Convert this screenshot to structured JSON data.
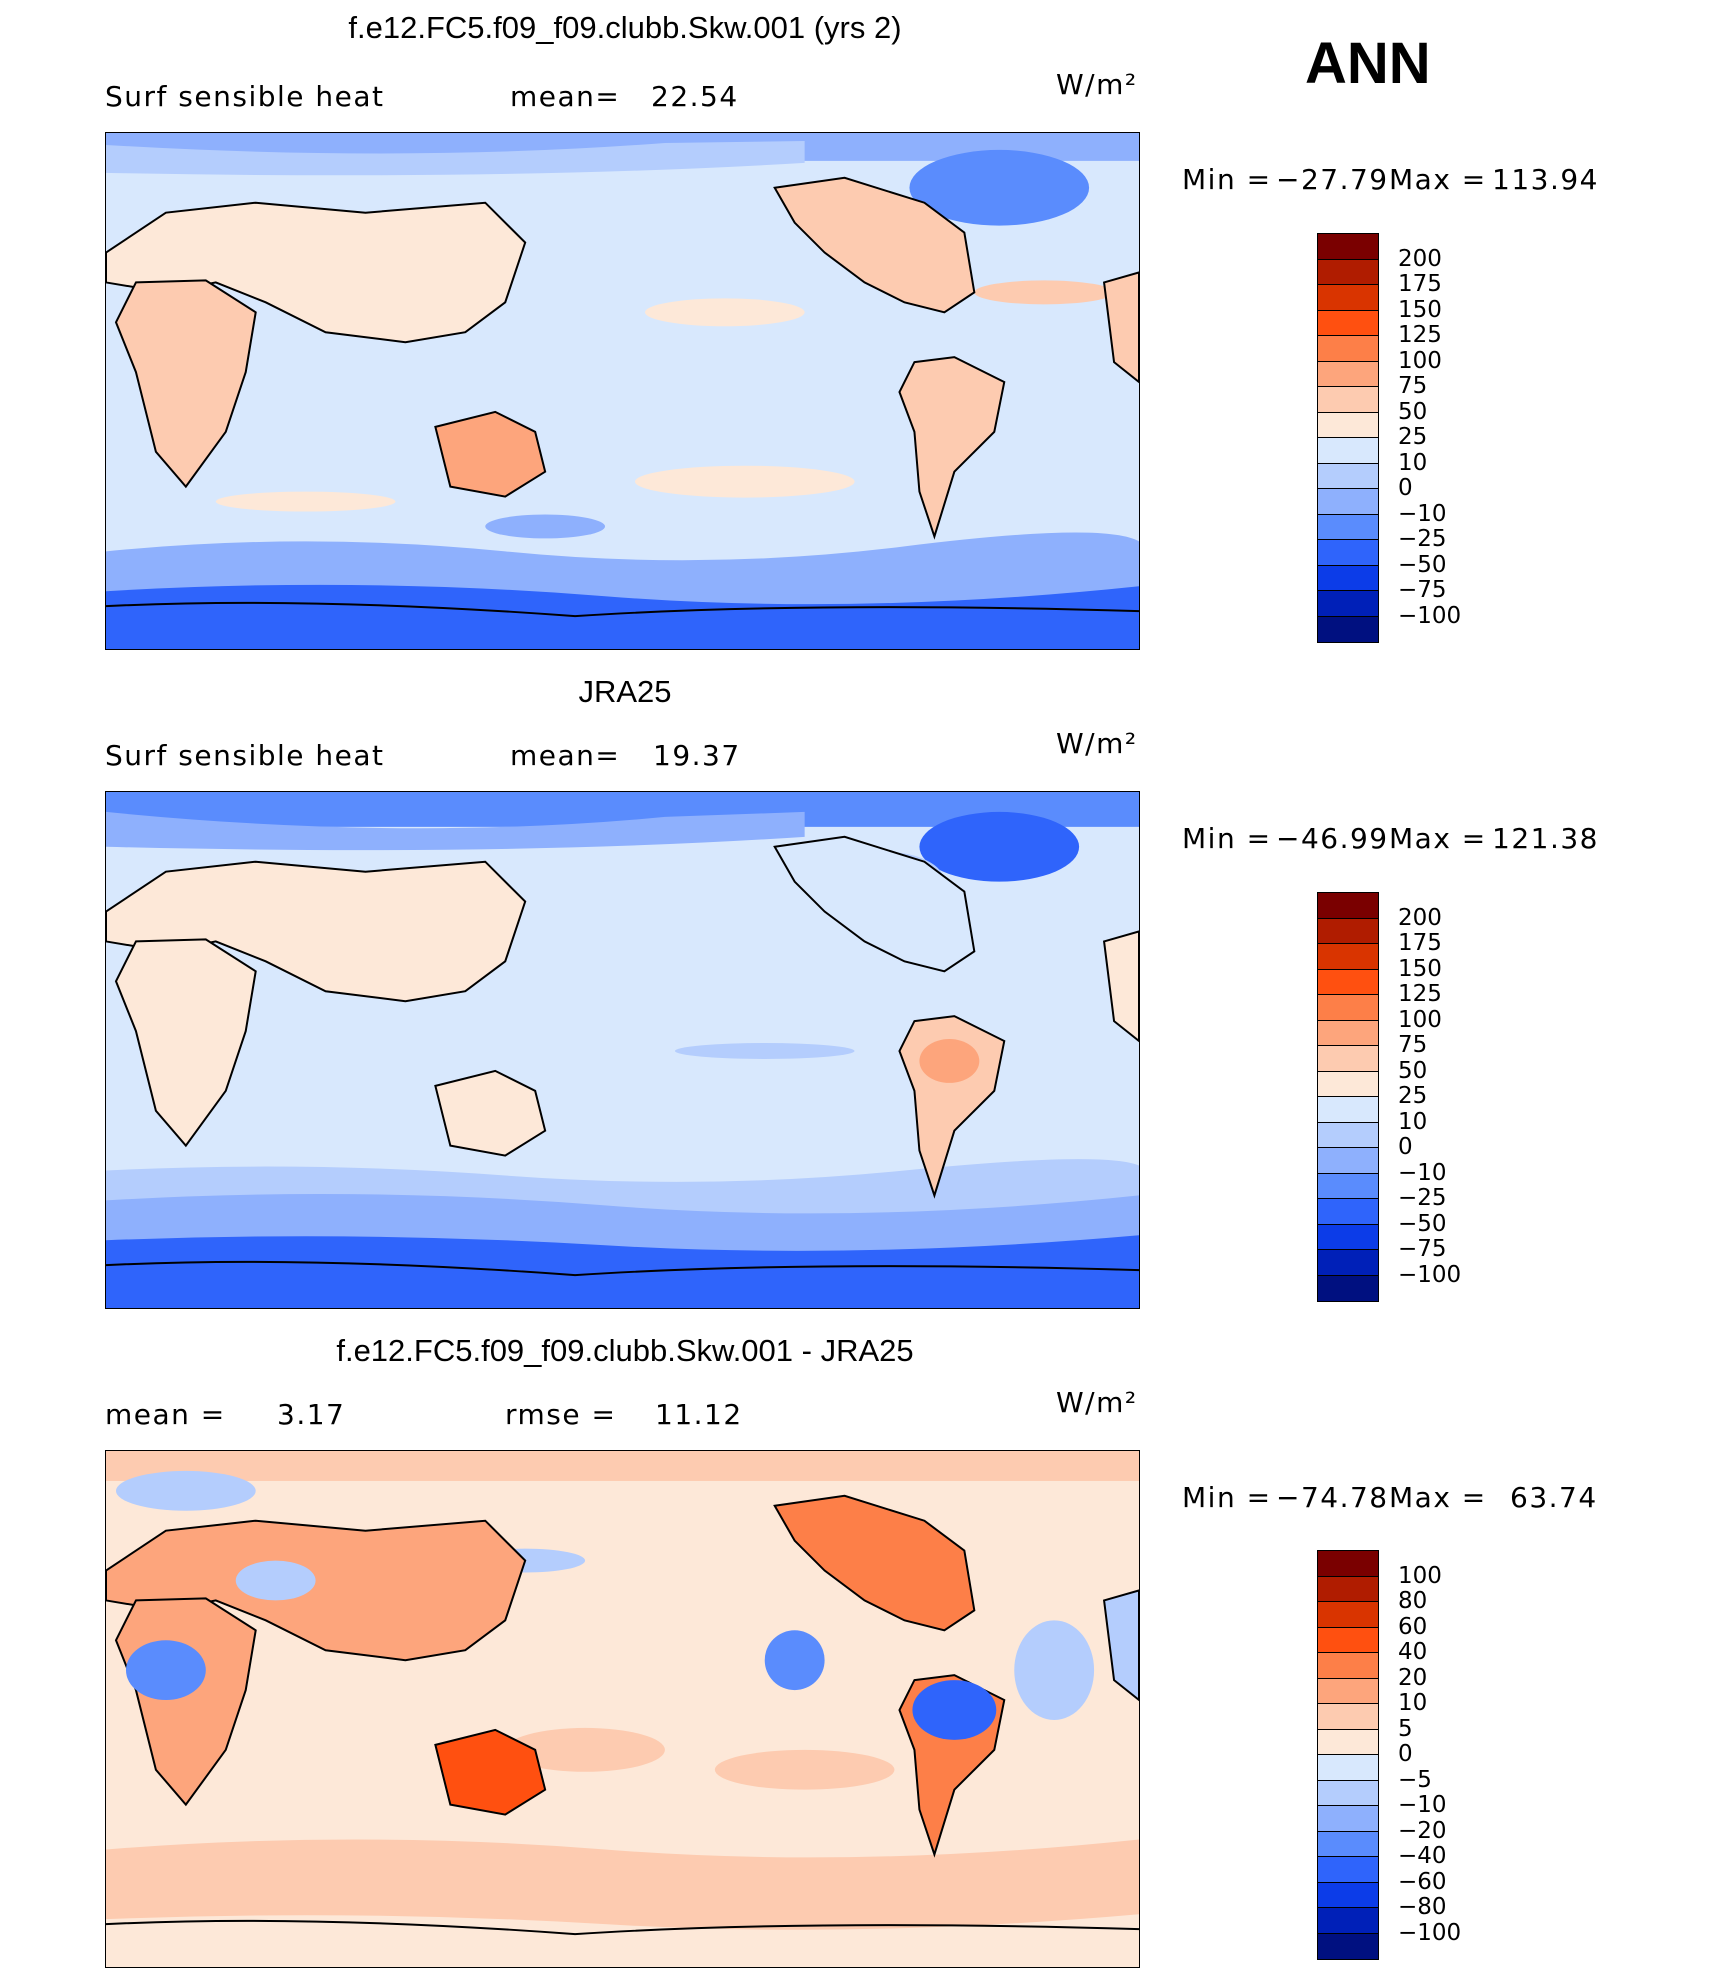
{
  "season": "ANN",
  "panels": [
    {
      "title": "f.e12.FC5.f09_f09.clubb.Skw.001 (yrs 2)",
      "left_label": "Surf  sensible  heat",
      "stat_label": "mean=",
      "stat_value": "22.54",
      "units": "W/m²",
      "min_label": "Min  =",
      "min_value": "−27.79",
      "max_label": "Max  =",
      "max_value": "113.94",
      "colorbar": {
        "labels": [
          "200",
          "175",
          "150",
          "125",
          "100",
          "75",
          "50",
          "25",
          "10",
          "0",
          "−10",
          "−25",
          "−50",
          "−75",
          "−100"
        ],
        "colors": [
          "#7a0000",
          "#b01c00",
          "#d93400",
          "#ff5010",
          "#fd7f48",
          "#fda57c",
          "#fdcbb0",
          "#fde8d8",
          "#d8e8fd",
          "#b4cdfd",
          "#8eb0fd",
          "#5a8cfd",
          "#2f64fb",
          "#0c3ce8",
          "#0020b8",
          "#001080"
        ]
      }
    },
    {
      "title": "JRA25",
      "left_label": "Surf  sensible  heat",
      "stat_label": "mean=",
      "stat_value": "19.37",
      "units": "W/m²",
      "min_label": "Min  =",
      "min_value": "−46.99",
      "max_label": "Max  =",
      "max_value": "121.38",
      "colorbar": {
        "labels": [
          "200",
          "175",
          "150",
          "125",
          "100",
          "75",
          "50",
          "25",
          "10",
          "0",
          "−10",
          "−25",
          "−50",
          "−75",
          "−100"
        ],
        "colors": [
          "#7a0000",
          "#b01c00",
          "#d93400",
          "#ff5010",
          "#fd7f48",
          "#fda57c",
          "#fdcbb0",
          "#fde8d8",
          "#d8e8fd",
          "#b4cdfd",
          "#8eb0fd",
          "#5a8cfd",
          "#2f64fb",
          "#0c3ce8",
          "#0020b8",
          "#001080"
        ]
      }
    },
    {
      "title": "f.e12.FC5.f09_f09.clubb.Skw.001 - JRA25",
      "left_label": "mean  =",
      "left_value": "3.17",
      "stat_label": "rmse  =",
      "stat_value": "11.12",
      "units": "W/m²",
      "min_label": "Min  =",
      "min_value": "−74.78",
      "max_label": "Max  =",
      "max_value": "63.74",
      "colorbar": {
        "labels": [
          "100",
          "80",
          "60",
          "40",
          "20",
          "10",
          "5",
          "0",
          "−5",
          "−10",
          "−20",
          "−40",
          "−60",
          "−80",
          "−100"
        ],
        "colors": [
          "#7a0000",
          "#b01c00",
          "#d93400",
          "#ff5010",
          "#fd7f48",
          "#fda57c",
          "#fdcbb0",
          "#fde8d8",
          "#d8e8fd",
          "#b4cdfd",
          "#8eb0fd",
          "#5a8cfd",
          "#2f64fb",
          "#0c3ce8",
          "#0020b8",
          "#001080"
        ]
      }
    }
  ]
}
